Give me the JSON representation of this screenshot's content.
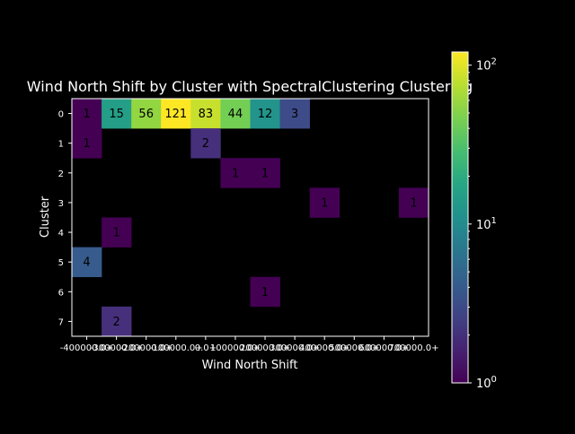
{
  "chart_data": {
    "type": "heatmap",
    "title": "Wind North Shift by Cluster with SpectralClustering Clustering",
    "xlabel": "Wind North Shift",
    "ylabel": "Cluster",
    "x_categories": [
      "-400000.0+",
      "-300000.0+",
      "-200000.0+",
      "-100000.0+",
      "0.0+",
      "100000.0+",
      "200000.0+",
      "300000.0+",
      "400000.0+",
      "500000.0+",
      "600000.0+",
      "700000.0+"
    ],
    "y_categories": [
      "0",
      "1",
      "2",
      "3",
      "4",
      "5",
      "6",
      "7"
    ],
    "values": [
      [
        1,
        15,
        56,
        121,
        83,
        44,
        12,
        3,
        null,
        null,
        null,
        null
      ],
      [
        1,
        null,
        null,
        null,
        2,
        null,
        null,
        null,
        null,
        null,
        null,
        null
      ],
      [
        null,
        null,
        null,
        null,
        null,
        1,
        1,
        null,
        null,
        null,
        null,
        null
      ],
      [
        null,
        null,
        null,
        null,
        null,
        null,
        null,
        null,
        1,
        null,
        null,
        1
      ],
      [
        null,
        1,
        null,
        null,
        null,
        null,
        null,
        null,
        null,
        null,
        null,
        null
      ],
      [
        4,
        null,
        null,
        null,
        null,
        null,
        null,
        null,
        null,
        null,
        null,
        null
      ],
      [
        null,
        null,
        null,
        null,
        null,
        null,
        1,
        null,
        null,
        null,
        null,
        null
      ],
      [
        null,
        2,
        null,
        null,
        null,
        null,
        null,
        null,
        null,
        null,
        null,
        null
      ]
    ],
    "colormap": "viridis",
    "color_scale": "log",
    "colorbar": {
      "range": [
        1,
        121
      ],
      "tick_labels": [
        "10^0",
        "10^1",
        "10^2"
      ]
    },
    "grid": false
  }
}
